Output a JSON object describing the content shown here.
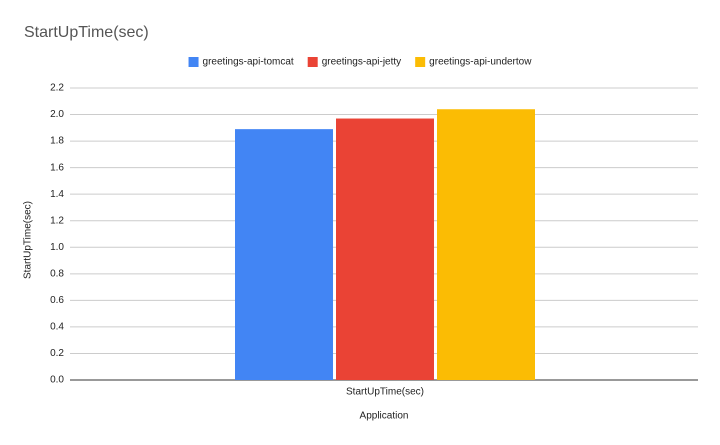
{
  "chart_data": {
    "type": "bar",
    "title": "StartUpTime(sec)",
    "x_label": "Application",
    "y_label": "StartUpTime(sec)",
    "categories": [
      "StartUpTime(sec)"
    ],
    "series": [
      {
        "name": "greetings-api-tomcat",
        "color": "#4285f4",
        "values": [
          1.89
        ]
      },
      {
        "name": "greetings-api-jetty",
        "color": "#ea4335",
        "values": [
          1.97
        ]
      },
      {
        "name": "greetings-api-undertow",
        "color": "#fbbc04",
        "values": [
          2.04
        ]
      }
    ],
    "ylim": [
      0,
      2.2
    ],
    "yticks": [
      {
        "value": 0,
        "label": "0.0"
      },
      0.2,
      0.4,
      0.6,
      0.8,
      {
        "value": 1,
        "label": "1.0"
      },
      1.2,
      1.4,
      1.6,
      1.8,
      {
        "value": 2,
        "label": "2.0"
      },
      2.2
    ],
    "grid": true,
    "legend": "top"
  }
}
